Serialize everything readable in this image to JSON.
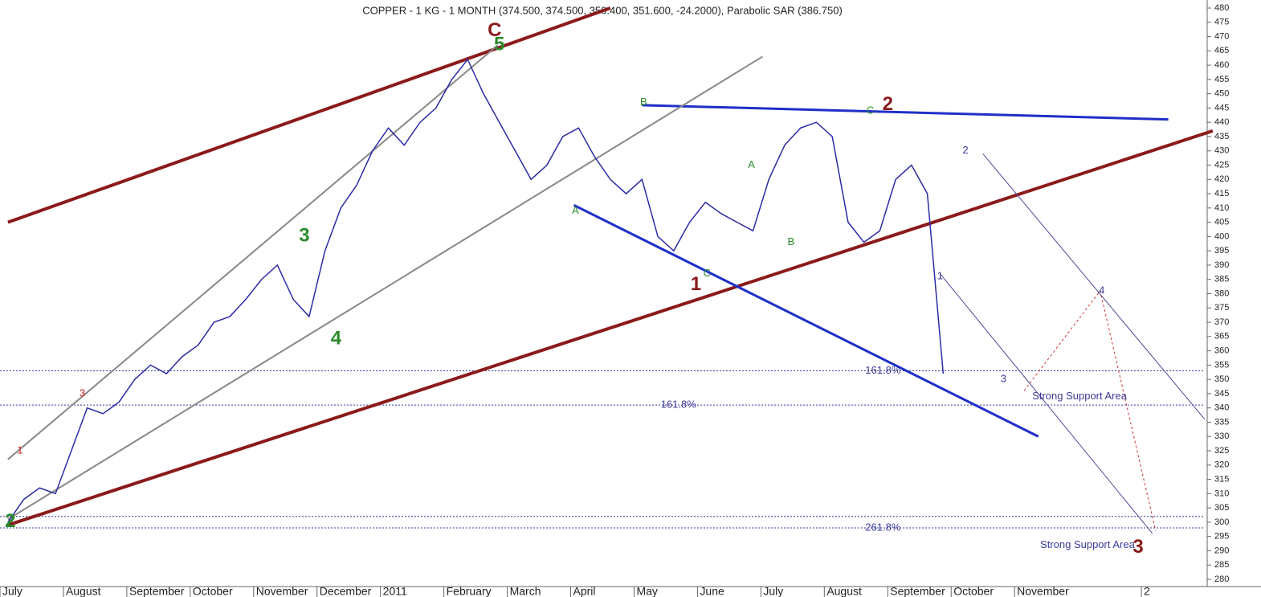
{
  "chart_data": {
    "type": "line",
    "title": "COPPER - 1 KG - 1 MONTH (374.500, 374.500, 350.400, 351.600, -24.2000), Parabolic SAR (386.750)",
    "categories": [
      "July",
      null,
      null,
      null,
      "August",
      null,
      null,
      null,
      "September",
      null,
      null,
      null,
      "October",
      null,
      null,
      null,
      "November",
      null,
      null,
      null,
      "December",
      null,
      null,
      null,
      "2011",
      null,
      null,
      null,
      "February",
      null,
      null,
      null,
      "March",
      null,
      null,
      null,
      "April",
      null,
      null,
      null,
      "May",
      null,
      null,
      null,
      "June",
      null,
      null,
      null,
      "July",
      null,
      null,
      null,
      "August",
      null,
      null,
      null,
      "September",
      null,
      null,
      null,
      "October",
      null,
      null,
      null,
      "November",
      null,
      null,
      null,
      null,
      null,
      null,
      null,
      "2",
      null,
      null,
      null
    ],
    "series": [
      {
        "name": "COPPER - 1 KG",
        "color": "#2b2ba6",
        "values": [
          300,
          308,
          312,
          310,
          325,
          340,
          338,
          342,
          350,
          355,
          352,
          358,
          362,
          370,
          372,
          378,
          385,
          390,
          378,
          372,
          395,
          410,
          418,
          430,
          438,
          432,
          440,
          445,
          455,
          462,
          450,
          440,
          430,
          420,
          425,
          435,
          438,
          428,
          420,
          415,
          420,
          400,
          395,
          405,
          412,
          408,
          405,
          402,
          420,
          432,
          438,
          440,
          435,
          405,
          398,
          402,
          420,
          425,
          415,
          352,
          null,
          null,
          null,
          null,
          null,
          null,
          null,
          null,
          null,
          null,
          null,
          null,
          null,
          null,
          null,
          null
        ]
      }
    ],
    "ylim": [
      280,
      480
    ],
    "yticks": [
      280,
      285,
      290,
      295,
      300,
      305,
      310,
      315,
      320,
      325,
      330,
      335,
      340,
      345,
      350,
      355,
      360,
      365,
      370,
      375,
      380,
      385,
      390,
      395,
      400,
      405,
      410,
      415,
      420,
      425,
      430,
      435,
      440,
      445,
      450,
      455,
      460,
      465,
      470,
      475,
      480
    ],
    "levels": [
      {
        "value": 353,
        "color": "#3a3a9a"
      },
      {
        "value": 341,
        "color": "#3a3a9a"
      },
      {
        "value": 302,
        "color": "#3a3a9a"
      },
      {
        "value": 298,
        "color": "#3a3a9a"
      }
    ],
    "trendlines": [
      {
        "color": "#8b1a1a",
        "width": 4,
        "points": [
          [
            0,
            405
          ],
          [
            38,
            480
          ]
        ]
      },
      {
        "color": "#8b1a1a",
        "width": 4,
        "points": [
          [
            0,
            299
          ],
          [
            76,
            437
          ]
        ]
      },
      {
        "color": "#1f2fc8",
        "width": 3,
        "points": [
          [
            40,
            446
          ],
          [
            73.2,
            441
          ]
        ]
      },
      {
        "color": "#1f2fc8",
        "width": 3,
        "points": [
          [
            35.7,
            411
          ],
          [
            65,
            330
          ]
        ]
      },
      {
        "color": "#888888",
        "width": 2,
        "points": [
          [
            0,
            322
          ],
          [
            30.9,
            467
          ]
        ]
      },
      {
        "color": "#888888",
        "width": 2,
        "points": [
          [
            0,
            301
          ],
          [
            47.6,
            463
          ]
        ]
      },
      {
        "color": "#4a4a9a",
        "width": 1,
        "points": [
          [
            61.5,
            429
          ],
          [
            75.5,
            336
          ]
        ]
      },
      {
        "color": "#4a4a9a",
        "width": 1,
        "points": [
          [
            58.8,
            387
          ],
          [
            72.2,
            296
          ]
        ]
      },
      {
        "color": "#cc3333",
        "width": 1,
        "dashed": true,
        "points": [
          [
            64.1,
            346
          ],
          [
            68.9,
            381
          ],
          [
            72.4,
            297
          ]
        ]
      }
    ],
    "annotations": [
      {
        "text": "C",
        "x": 30.7,
        "y": 472,
        "color": "#8b1a1a",
        "size": "large"
      },
      {
        "text": "5",
        "x": 31,
        "y": 467,
        "color": "#2a8a2a",
        "size": "large"
      },
      {
        "text": "2",
        "x": 55.5,
        "y": 446,
        "color": "#8b1a1a",
        "size": "large"
      },
      {
        "text": "1",
        "x": 43.4,
        "y": 383,
        "color": "#8b1a1a",
        "size": "large"
      },
      {
        "text": "3",
        "x": 71.3,
        "y": 291,
        "color": "#8b1a1a",
        "size": "large"
      },
      {
        "text": "3",
        "x": 18.7,
        "y": 400,
        "color": "#2a8a2a",
        "size": "large"
      },
      {
        "text": "4",
        "x": 20.7,
        "y": 364,
        "color": "#2a8a2a",
        "size": "large"
      },
      {
        "text": "2",
        "x": 0.15,
        "y": 300,
        "color": "#2a8a2a",
        "size": "large"
      },
      {
        "text": "A",
        "x": 35.8,
        "y": 409,
        "color": "#2a8a2a",
        "size": "small"
      },
      {
        "text": "B",
        "x": 40.1,
        "y": 447,
        "color": "#2a8a2a",
        "size": "small"
      },
      {
        "text": "C",
        "x": 54.4,
        "y": 444,
        "color": "#2a8a2a",
        "size": "small"
      },
      {
        "text": "A",
        "x": 46.9,
        "y": 425,
        "color": "#2a8a2a",
        "size": "small"
      },
      {
        "text": "B",
        "x": 49.4,
        "y": 398,
        "color": "#2a8a2a",
        "size": "small"
      },
      {
        "text": "C",
        "x": 44.1,
        "y": 387,
        "color": "#2a8a2a",
        "size": "small"
      },
      {
        "text": "1",
        "x": 0.76,
        "y": 325,
        "color": "#d02020",
        "size": "small"
      },
      {
        "text": "3",
        "x": 4.7,
        "y": 345,
        "color": "#d02020",
        "size": "small"
      },
      {
        "text": "161.8%",
        "x": 55.2,
        "y": 353,
        "color": "#3a3a9a",
        "size": "small"
      },
      {
        "text": "161.8%",
        "x": 42.3,
        "y": 341,
        "color": "#3a3a9a",
        "size": "small"
      },
      {
        "text": "261.8%",
        "x": 55.2,
        "y": 298,
        "color": "#3a3a9a",
        "size": "small"
      },
      {
        "text": "Strong Support Area",
        "x": 67.6,
        "y": 344,
        "color": "#3a3a9a",
        "size": "small"
      },
      {
        "text": "Strong Support Area",
        "x": 68.1,
        "y": 292,
        "color": "#3a3a9a",
        "size": "small"
      },
      {
        "text": "1",
        "x": 58.8,
        "y": 386,
        "color": "#3a3a9a",
        "size": "small"
      },
      {
        "text": "2",
        "x": 60.4,
        "y": 430,
        "color": "#3a3a9a",
        "size": "small"
      },
      {
        "text": "3",
        "x": 62.8,
        "y": 350,
        "color": "#3a3a9a",
        "size": "small"
      },
      {
        "text": "4",
        "x": 69,
        "y": 381,
        "color": "#3a3a9a",
        "size": "small"
      }
    ]
  }
}
